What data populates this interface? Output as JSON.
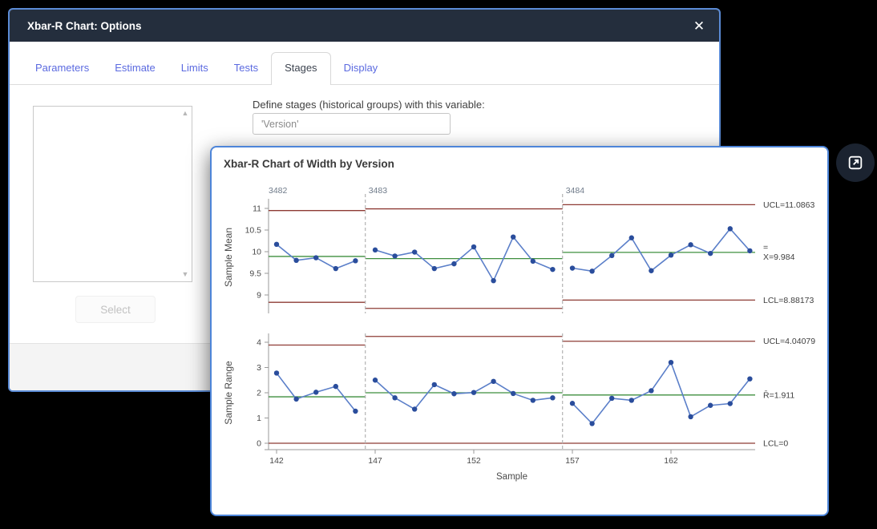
{
  "window": {
    "title": "Xbar-R Chart: Options",
    "close_glyph": "✕"
  },
  "tabs": [
    {
      "label": "Parameters",
      "active": false
    },
    {
      "label": "Estimate",
      "active": false
    },
    {
      "label": "Limits",
      "active": false
    },
    {
      "label": "Tests",
      "active": false
    },
    {
      "label": "Stages",
      "active": true
    },
    {
      "label": "Display",
      "active": false
    }
  ],
  "stages_tab": {
    "variable_label": "Define stages (historical groups) with this variable:",
    "variable_value": "'Version'",
    "select_button": "Select",
    "scrollbar": {
      "up_glyph": "▲",
      "down_glyph": "▼"
    }
  },
  "chart_data": {
    "type": "line",
    "title": "Xbar-R Chart of Width by Version",
    "xlabel": "Sample",
    "x_start": 142,
    "x_end": 166,
    "xticks": [
      142,
      147,
      152,
      157,
      162
    ],
    "stage_labels": [
      "3482",
      "3483",
      "3484"
    ],
    "stage_starts": [
      142,
      147,
      157
    ],
    "panels": [
      {
        "ylabel": "Sample Mean",
        "yticks": [
          9,
          9.5,
          10,
          10.5,
          11
        ],
        "ylim": [
          8.55,
          11.3
        ],
        "stages": [
          {
            "label": "3482",
            "ucl": 10.95,
            "center": 9.89,
            "lcl": 8.83,
            "values": [
              10.17,
              9.8,
              9.86,
              9.61,
              9.79
            ]
          },
          {
            "label": "3483",
            "ucl": 10.99,
            "center": 9.84,
            "lcl": 8.69,
            "values": [
              10.04,
              9.9,
              9.99,
              9.61,
              9.72,
              10.11,
              9.33,
              10.34,
              9.78,
              9.59
            ]
          },
          {
            "label": "3484",
            "ucl": 11.0863,
            "center": 9.984,
            "lcl": 8.88173,
            "values": [
              9.62,
              9.55,
              9.91,
              10.32,
              9.56,
              9.92,
              10.16,
              9.96,
              10.53,
              10.02
            ]
          }
        ],
        "right_labels": [
          {
            "lines": [
              "UCL=11.0863"
            ],
            "value": 11.0863
          },
          {
            "lines": [
              "=",
              "X=9.984"
            ],
            "value": 9.984
          },
          {
            "lines": [
              "LCL=8.88173"
            ],
            "value": 8.88173
          }
        ]
      },
      {
        "ylabel": "Sample Range",
        "yticks": [
          0,
          1,
          2,
          3,
          4
        ],
        "ylim": [
          -0.15,
          4.45
        ],
        "stages": [
          {
            "label": "3482",
            "ucl": 3.89,
            "center": 1.84,
            "lcl": 0,
            "values": [
              2.78,
              1.75,
              2.02,
              2.25,
              1.27
            ]
          },
          {
            "label": "3483",
            "ucl": 4.23,
            "center": 2.0,
            "lcl": 0,
            "values": [
              2.5,
              1.8,
              1.35,
              2.32,
              1.96,
              2.01,
              2.45,
              1.97,
              1.7,
              1.8
            ]
          },
          {
            "label": "3484",
            "ucl": 4.04079,
            "center": 1.911,
            "lcl": 0,
            "values": [
              1.58,
              0.78,
              1.78,
              1.7,
              2.08,
              3.2,
              1.05,
              1.5,
              1.57,
              2.55
            ]
          }
        ],
        "right_labels": [
          {
            "lines": [
              "UCL=4.04079"
            ],
            "value": 4.04079
          },
          {
            "lines": [
              "R̄=1.911"
            ],
            "value": 1.911
          },
          {
            "lines": [
              "LCL=0"
            ],
            "value": 0
          }
        ]
      }
    ],
    "colors": {
      "limit": "#8e3b34",
      "center": "#3f8f3f",
      "series": "#5b7fc9",
      "marker": "#2a4d9c",
      "separator": "#b3b3b3",
      "axis": "#9a9a9a",
      "tick_text": "#4a4a4a",
      "stage_label": "#6f7b8a",
      "right_label_text": "#3f3f3f"
    }
  }
}
